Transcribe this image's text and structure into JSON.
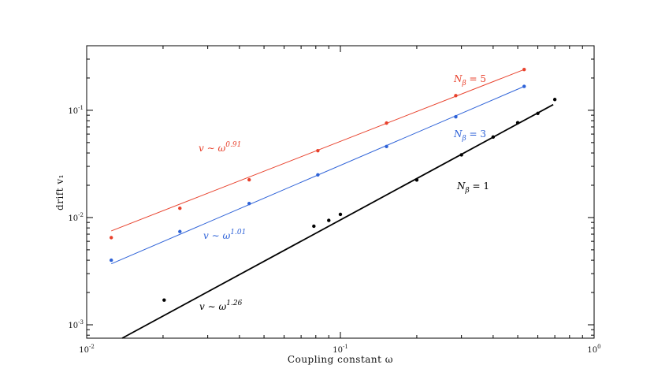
{
  "chart_data": {
    "type": "scatter",
    "title": "",
    "xlabel": "Coupling constant ω",
    "ylabel": "drift v₁",
    "xscale": "log",
    "yscale": "log",
    "xlim": [
      0.01,
      1
    ],
    "ylim": [
      0.00075,
      0.4
    ],
    "x_ticks": [
      {
        "value": 0.01,
        "mantissa": "10",
        "exp": "-2"
      },
      {
        "value": 0.1,
        "mantissa": "10",
        "exp": "-1"
      },
      {
        "value": 1,
        "mantissa": "10",
        "exp": "0"
      }
    ],
    "y_ticks": [
      {
        "value": 0.001,
        "mantissa": "10",
        "exp": "-3"
      },
      {
        "value": 0.01,
        "mantissa": "10",
        "exp": "-2"
      },
      {
        "value": 0.1,
        "mantissa": "10",
        "exp": "-1"
      }
    ],
    "grid": false,
    "series": [
      {
        "name": "Nβ = 5",
        "color": "#e8412c",
        "x": [
          0.0125,
          0.0233,
          0.0437,
          0.0815,
          0.152,
          0.285,
          0.53
        ],
        "y": [
          0.0065,
          0.0122,
          0.0225,
          0.042,
          0.076,
          0.137,
          0.24
        ],
        "fit": {
          "x": [
            0.0125,
            0.53
          ],
          "y": [
            0.0075,
            0.24
          ]
        }
      },
      {
        "name": "Nβ = 3",
        "color": "#2f63d8",
        "x": [
          0.0125,
          0.0233,
          0.0437,
          0.0815,
          0.152,
          0.285,
          0.53
        ],
        "y": [
          0.004,
          0.0074,
          0.0135,
          0.025,
          0.046,
          0.087,
          0.167
        ],
        "fit": {
          "x": [
            0.0125,
            0.53
          ],
          "y": [
            0.0037,
            0.167
          ]
        }
      },
      {
        "name": "Nβ = 1",
        "color": "#000000",
        "x": [
          0.0202,
          0.0786,
          0.09,
          0.1,
          0.2,
          0.3,
          0.4,
          0.5,
          0.6,
          0.7
        ],
        "y": [
          0.0017,
          0.0083,
          0.0094,
          0.0107,
          0.0224,
          0.0384,
          0.0563,
          0.0765,
          0.0935,
          0.126
        ],
        "fit": {
          "x": [
            0.0138,
            0.69
          ],
          "y": [
            0.00075,
            0.113
          ]
        }
      }
    ],
    "annotations": [
      {
        "base": "v ∼ ω",
        "exp": "0.91",
        "color": "#e8412c"
      },
      {
        "base": "v ∼ ω",
        "exp": "1.01",
        "color": "#2f63d8"
      },
      {
        "base": "v ∼ ω",
        "exp": "1.26",
        "color": "#000000"
      },
      {
        "main": "N",
        "sub": "β",
        "tail": " = 5",
        "color": "#e8412c"
      },
      {
        "main": "N",
        "sub": "β",
        "tail": " = 3",
        "color": "#2f63d8"
      },
      {
        "main": "N",
        "sub": "β",
        "tail": " = 1",
        "color": "#000000"
      }
    ]
  }
}
